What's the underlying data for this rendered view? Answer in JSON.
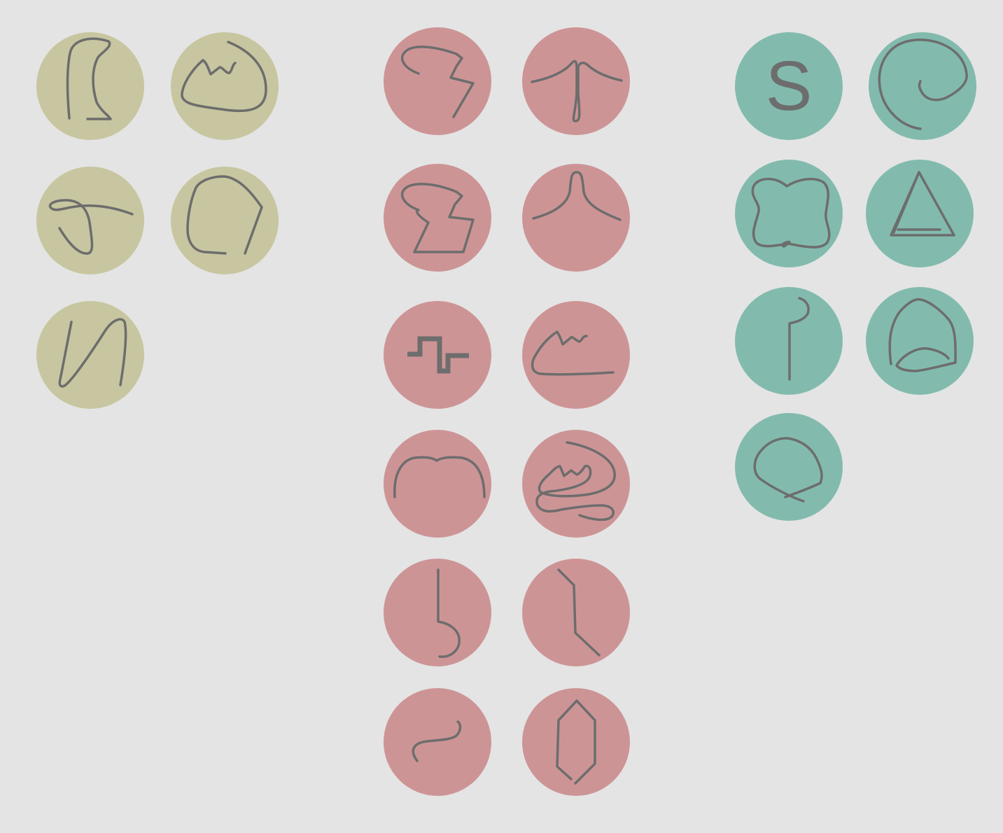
{
  "colors": {
    "background": "#e4e4e4",
    "olive": "#c7c6a0",
    "rose": "#cd9496",
    "teal": "#82bbad",
    "stroke": "#6d6d6d"
  },
  "groups": [
    {
      "color": "olive",
      "tokens": [
        "squiggle-bracket-icon",
        "mountain-blob-icon",
        "hook-curve-icon",
        "open-polygon-icon",
        "n-wave-icon"
      ]
    },
    {
      "color": "rose",
      "tokens": [
        "zigzag-hook-icon",
        "arrow-up-stem-icon",
        "z-parallelogram-icon",
        "bell-peak-icon",
        "square-step-icon",
        "hill-line-icon",
        "arch-icon",
        "spiral-mountain-icon",
        "stem-hook-icon",
        "bent-line-icon",
        "s-curve-icon",
        "hexagon-outline-icon"
      ]
    },
    {
      "color": "teal",
      "tokens": [
        "letter-s-glyph",
        "spiral-c-icon",
        "cushion-square-icon",
        "triangle-icon",
        "hook-stem-icon",
        "dome-icon",
        "loop-drop-icon"
      ]
    }
  ],
  "glyphs": {
    "letter_s": "S"
  }
}
